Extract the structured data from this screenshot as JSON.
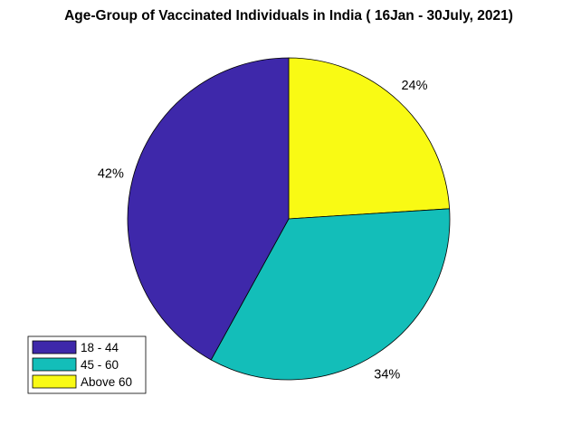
{
  "chart_data": {
    "type": "pie",
    "title": "Age-Group of Vaccinated Individuals in India ( 16Jan - 30July, 2021)",
    "slices": [
      {
        "label": "Above 60",
        "value": 24,
        "percent_label": "24%",
        "color": "#f9fa14"
      },
      {
        "label": "45 - 60",
        "value": 34,
        "percent_label": "34%",
        "color": "#13beb9"
      },
      {
        "label": "18 - 44",
        "value": 42,
        "percent_label": "42%",
        "color": "#3e28aa"
      }
    ],
    "legend": {
      "placement": "bottom-left",
      "entries": [
        {
          "label": "18 - 44",
          "color": "#3e28aa"
        },
        {
          "label": "45 - 60",
          "color": "#13beb9"
        },
        {
          "label": "Above 60",
          "color": "#f9fa14"
        }
      ]
    }
  }
}
